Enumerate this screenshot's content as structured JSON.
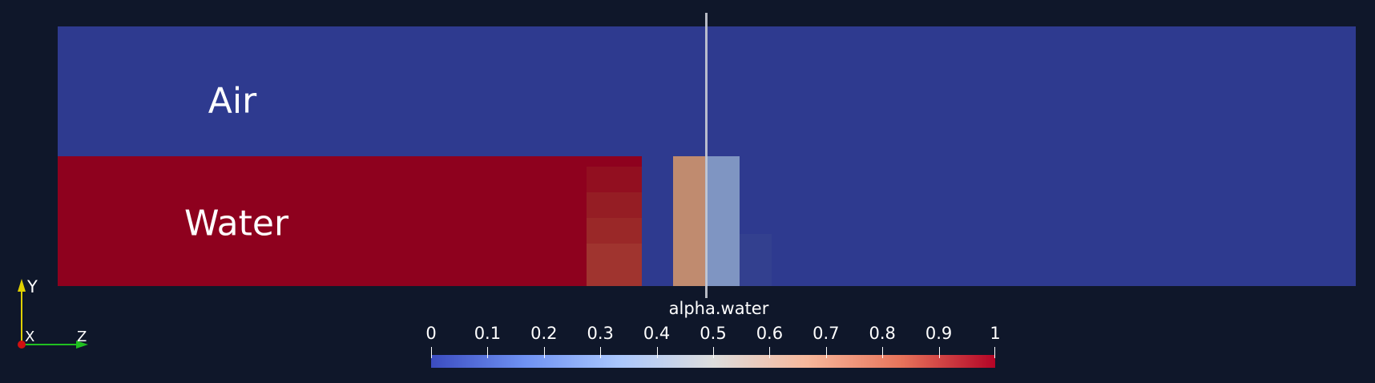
{
  "scene": {
    "regions": [
      {
        "label": "Air",
        "color": "#2e3a8f"
      },
      {
        "label": "Water",
        "color": "#8e011e"
      }
    ]
  },
  "colorbar": {
    "title": "alpha.water",
    "colormap": "Cool to Warm",
    "range": [
      0,
      1
    ],
    "ticks": [
      "0",
      "0.1",
      "0.2",
      "0.3",
      "0.4",
      "0.5",
      "0.6",
      "0.7",
      "0.8",
      "0.9",
      "1"
    ]
  },
  "axes": {
    "y": "Y",
    "x": "X",
    "z": "Z",
    "y_color": "#e0d000",
    "z_color": "#20c020",
    "x_color": "#d01010"
  }
}
